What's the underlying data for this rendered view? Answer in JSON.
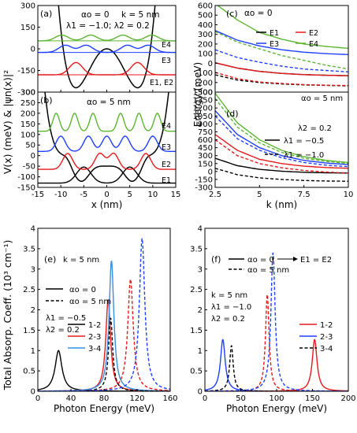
{
  "figure": {
    "shared_ylabel_ab": "V(x) (meV) & |ψn(x)|²",
    "shared_ylabel_ef": "Total Absorp. Coeff. (10³ cm⁻¹)"
  },
  "chart_data": [
    {
      "id": "a",
      "type": "line",
      "panel_label": "(a)",
      "annotations": [
        "αo = 0",
        "k = 5 nm",
        "λ1 = −1.0; λ2 = 0.2"
      ],
      "state_labels": [
        "E4",
        "E3",
        "E1, E2"
      ],
      "xlabel": "",
      "ylabel": "",
      "xlim": [
        -15,
        15
      ],
      "ylim": [
        -300,
        300
      ],
      "xticks": [
        -15,
        -10,
        -5,
        0,
        5,
        10,
        15
      ],
      "yticks": [
        -300,
        -150,
        0,
        150,
        300
      ],
      "potential": {
        "type": "double-well",
        "depth": -270,
        "well_positions": [
          -6.7,
          6.7
        ],
        "barrier_height": 0
      },
      "wavefunctions": [
        {
          "name": "E1, E2",
          "color": "#e41a1c",
          "baseline": -180,
          "peaks": [
            -6.7,
            6.7
          ],
          "amplitude": 85
        },
        {
          "name": "E3",
          "color": "#1f3fff",
          "baseline": -25,
          "peaks": [
            -9,
            -4.5,
            4.5,
            9
          ],
          "amplitude": 50
        },
        {
          "name": "E4",
          "color": "#5cb531",
          "baseline": 55,
          "peaks": [
            -9.8,
            -3.5,
            3.5,
            9.8
          ],
          "amplitude": 40
        }
      ]
    },
    {
      "id": "b",
      "type": "line",
      "panel_label": "(b)",
      "annotations": [
        "αo = 5 nm"
      ],
      "state_labels": [
        "E4",
        "E3",
        "E2",
        "E1"
      ],
      "xlabel": "x (nm)",
      "ylabel": "",
      "xlim": [
        -15,
        15
      ],
      "ylim": [
        -150,
        300
      ],
      "xticks": [
        -15,
        -10,
        -5,
        0,
        5,
        10,
        15
      ],
      "yticks": [
        -150,
        -100,
        -50,
        0,
        50,
        100,
        150,
        200,
        250,
        300
      ],
      "potential": {
        "type": "triple-well",
        "depth": -135,
        "central_barrier": -40
      },
      "wavefunctions": [
        {
          "name": "E1",
          "color": "#000000",
          "baseline": -130,
          "amplitude": 95
        },
        {
          "name": "E2",
          "color": "#e41a1c",
          "baseline": -65,
          "amplitude": 75
        },
        {
          "name": "E3",
          "color": "#1f3fff",
          "baseline": 20,
          "amplitude": 80
        },
        {
          "name": "E4",
          "color": "#5cb531",
          "baseline": 115,
          "amplitude": 85
        }
      ]
    },
    {
      "id": "c",
      "type": "line",
      "panel_label": "(c)",
      "annotations": [
        "αo = 0"
      ],
      "xlabel": "",
      "ylabel": "Energy (meV)",
      "xlim": [
        2.5,
        10.0
      ],
      "ylim": [
        -300,
        600
      ],
      "yticks": [
        -300,
        -200,
        -100,
        0,
        100,
        200,
        300,
        400,
        500,
        600
      ],
      "x": [
        2.5,
        3.75,
        5.0,
        6.25,
        7.5,
        8.75,
        10.0
      ],
      "legend": [
        "E1",
        "E2",
        "E3",
        "E4"
      ],
      "series": [
        {
          "name": "E1",
          "color": "#000000",
          "style": "solid",
          "values": [
            5,
            -50,
            -85,
            -105,
            -118,
            -125,
            -130
          ]
        },
        {
          "name": "E2",
          "color": "#e41a1c",
          "style": "solid",
          "values": [
            5,
            -50,
            -85,
            -105,
            -118,
            -125,
            -130
          ]
        },
        {
          "name": "E3",
          "color": "#1f3fff",
          "style": "solid",
          "values": [
            340,
            240,
            180,
            140,
            115,
            100,
            90
          ]
        },
        {
          "name": "E4",
          "color": "#5cb531",
          "style": "solid",
          "values": [
            620,
            450,
            320,
            250,
            200,
            175,
            155
          ]
        },
        {
          "name": "E1",
          "color": "#000000",
          "style": "dashed",
          "values": [
            -120,
            -175,
            -200,
            -215,
            -225,
            -230,
            -235
          ]
        },
        {
          "name": "E2",
          "color": "#e41a1c",
          "style": "dashed",
          "values": [
            -95,
            -160,
            -195,
            -210,
            -222,
            -228,
            -232
          ]
        },
        {
          "name": "E3",
          "color": "#1f3fff",
          "style": "dashed",
          "values": [
            140,
            60,
            10,
            -30,
            -60,
            -75,
            -90
          ]
        },
        {
          "name": "E4",
          "color": "#5cb531",
          "style": "dashed",
          "values": [
            330,
            220,
            150,
            80,
            30,
            -20,
            -60
          ]
        }
      ]
    },
    {
      "id": "d",
      "type": "line",
      "panel_label": "(d)",
      "annotations": [
        "αo = 5 nm",
        "λ2 = 0.2"
      ],
      "legend": [
        "λ1 = −0.5",
        "λ1 = −1.0"
      ],
      "xlabel": "k (nm)",
      "ylabel": "",
      "xlim": [
        2.5,
        10.0
      ],
      "ylim": [
        -300,
        1500
      ],
      "xticks": [
        2.5,
        5.0,
        7.5,
        10.0
      ],
      "yticks": [
        -300,
        -150,
        0,
        150,
        300,
        450,
        600,
        750,
        900,
        1050,
        1200,
        1350,
        1500
      ],
      "x": [
        2.5,
        3.75,
        5.0,
        6.25,
        7.5,
        8.75,
        10.0
      ],
      "series": [
        {
          "name": "λ1 = −0.5",
          "color": "#000000",
          "style": "solid",
          "values": [
            250,
            110,
            40,
            5,
            -15,
            -25,
            -30
          ]
        },
        {
          "name": "λ1 = −0.5",
          "color": "#e41a1c",
          "style": "solid",
          "values": [
            700,
            400,
            230,
            150,
            100,
            75,
            60
          ]
        },
        {
          "name": "λ1 = −0.5",
          "color": "#1f3fff",
          "style": "solid",
          "values": [
            1150,
            700,
            450,
            300,
            210,
            160,
            130
          ]
        },
        {
          "name": "λ1 = −0.5",
          "color": "#5cb531",
          "style": "solid",
          "values": [
            1480,
            920,
            600,
            400,
            280,
            210,
            170
          ]
        },
        {
          "name": "λ1 = −1.0",
          "color": "#000000",
          "style": "dashed",
          "values": [
            60,
            -60,
            -120,
            -150,
            -170,
            -180,
            -185
          ]
        },
        {
          "name": "λ1 = −1.0",
          "color": "#e41a1c",
          "style": "dashed",
          "values": [
            600,
            300,
            150,
            70,
            20,
            -10,
            -30
          ]
        },
        {
          "name": "λ1 = −1.0",
          "color": "#1f3fff",
          "style": "dashed",
          "values": [
            1050,
            620,
            400,
            260,
            170,
            120,
            90
          ]
        },
        {
          "name": "λ1 = −1.0",
          "color": "#5cb531",
          "style": "dashed",
          "values": [
            1380,
            840,
            540,
            360,
            250,
            190,
            150
          ]
        }
      ]
    },
    {
      "id": "e",
      "type": "line",
      "panel_label": "(e)",
      "annotations": [
        "k = 5 nm",
        "λ1 = −0.5",
        "λ2 = 0.2"
      ],
      "legend_style": [
        "αo = 0",
        "αo = 5 nm"
      ],
      "legend_transitions": [
        "1-2",
        "2-3",
        "3-4"
      ],
      "xlabel": "Photon Energy (meV)",
      "ylabel": "",
      "xlim": [
        0,
        160
      ],
      "ylim": [
        0,
        4.0
      ],
      "xticks": [
        0,
        40,
        80,
        120,
        160
      ],
      "yticks": [
        0,
        0.5,
        1.0,
        1.5,
        2.0,
        2.5,
        3.0,
        3.5,
        4.0
      ],
      "peaks": [
        {
          "transition": "1-2",
          "color": "#000000",
          "style": "solid",
          "center": 25,
          "height": 1.0,
          "width": 5
        },
        {
          "transition": "2-3",
          "color": "#e41a1c",
          "style": "solid",
          "center": 85,
          "height": 2.25,
          "width": 3.5
        },
        {
          "transition": "3-4",
          "color": "#3a8de0",
          "style": "solid",
          "center": 89,
          "height": 3.2,
          "width": 3.5
        },
        {
          "transition": "1-2",
          "color": "#000000",
          "style": "dashed",
          "center": 88,
          "height": 1.8,
          "width": 3
        },
        {
          "transition": "2-3",
          "color": "#e41a1c",
          "style": "dashed",
          "center": 112,
          "height": 2.75,
          "width": 4
        },
        {
          "transition": "3-4",
          "color": "#1f3fff",
          "style": "dashed",
          "center": 126,
          "height": 3.75,
          "width": 4
        }
      ]
    },
    {
      "id": "f",
      "type": "line",
      "panel_label": "(f)",
      "annotations": [
        "k = 5 nm",
        "λ1 = −1.0",
        "λ2 = 0.2"
      ],
      "legend_style": [
        "αo = 0",
        "αo = 5 nm"
      ],
      "legend_note": "E1 = E2",
      "legend_transitions": [
        "1-2",
        "2-3",
        "3-4"
      ],
      "xlabel": "Photon Energy (meV)",
      "ylabel": "",
      "xlim": [
        0,
        200
      ],
      "ylim": [
        0,
        4.0
      ],
      "xticks": [
        0,
        50,
        100,
        150,
        200
      ],
      "yticks": [
        0,
        0.5,
        1.0,
        1.5,
        2.0,
        2.5,
        3.0,
        3.5,
        4.0
      ],
      "peaks": [
        {
          "transition": "2-3",
          "color": "#1f3fff",
          "style": "solid",
          "center": 25,
          "height": 1.27,
          "width": 4
        },
        {
          "transition": "1-2",
          "color": "#e41a1c",
          "style": "solid",
          "center": 153,
          "height": 1.27,
          "width": 4
        },
        {
          "transition": "3-4",
          "color": "#000000",
          "style": "dashed",
          "center": 37,
          "height": 1.12,
          "width": 3
        },
        {
          "transition": "2-3",
          "color": "#e41a1c",
          "style": "dashed",
          "center": 87,
          "height": 2.38,
          "width": 3
        },
        {
          "transition": "3-4",
          "color": "#1f3fff",
          "style": "dashed",
          "center": 95,
          "height": 3.4,
          "width": 3.5
        }
      ]
    }
  ]
}
